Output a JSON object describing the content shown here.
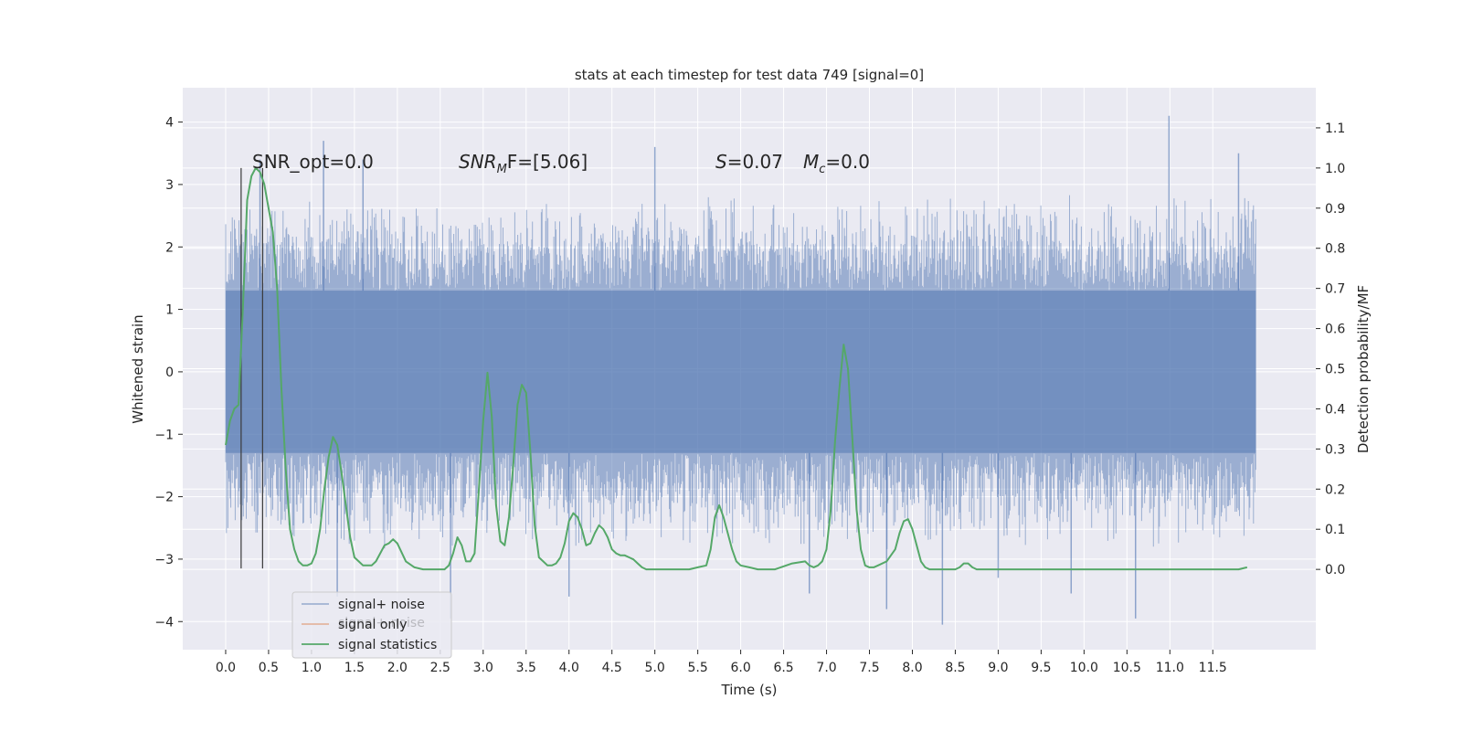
{
  "chart_data": {
    "type": "line",
    "title": "stats at each timestep for test data 749 [signal=0]",
    "xlabel": "Time (s)",
    "ylabel_left": "Whitened strain",
    "ylabel_right": "Detection probability/MF",
    "xlim": [
      -0.5,
      12.7
    ],
    "ylim_left": [
      -4.45,
      4.55
    ],
    "ylim_right": [
      -0.2,
      1.2
    ],
    "x_ticks": [
      "0.0",
      "0.5",
      "1.0",
      "1.5",
      "2.0",
      "2.5",
      "3.0",
      "3.5",
      "4.0",
      "4.5",
      "5.0",
      "5.5",
      "6.0",
      "6.5",
      "7.0",
      "7.5",
      "8.0",
      "8.5",
      "9.0",
      "9.5",
      "10.0",
      "10.5",
      "11.0",
      "11.5"
    ],
    "y_ticks_left": [
      "4",
      "3",
      "2",
      "1",
      "0",
      "−1",
      "−2",
      "−3",
      "−4"
    ],
    "y_ticks_right": [
      "1.1",
      "1.0",
      "0.9",
      "0.8",
      "0.7",
      "0.6",
      "0.5",
      "0.4",
      "0.3",
      "0.2",
      "0.1",
      "0.0"
    ],
    "grid": true,
    "legend_location": "lower-left",
    "colors": {
      "signal_noise": "#4c72b0",
      "signal_only": "#dd8452",
      "signal_statistics": "#55a868",
      "background": "#eaeaf2",
      "marker": "#3a3a3a"
    },
    "annotations": {
      "snr_opt": "SNR_opt=0.0",
      "snr_mf_base": "SNR",
      "snr_mf_sub": "M",
      "snr_mf_rest": "F=[5.06]",
      "s_var": "S",
      "s_val": "=0.07",
      "mc_var": "M",
      "mc_sub": "c",
      "mc_val": "=0.0"
    },
    "marker_lines_x": [
      0.18,
      0.43
    ],
    "noise_series": {
      "name": "signal+ noise",
      "t_start": 0.0,
      "t_end": 12.0,
      "core_band": [
        -1.3,
        1.3
      ],
      "typical_extremes": [
        -2.5,
        2.5
      ],
      "spikes": [
        {
          "t": 10.99,
          "y": 4.1
        },
        {
          "t": 1.14,
          "y": 3.7
        },
        {
          "t": 5.0,
          "y": 3.6
        },
        {
          "t": 11.8,
          "y": 3.5
        },
        {
          "t": 1.6,
          "y": 3.4
        },
        {
          "t": 0.4,
          "y": 3.4
        },
        {
          "t": 10.6,
          "y": -3.95
        },
        {
          "t": 2.62,
          "y": -3.95
        },
        {
          "t": 8.35,
          "y": -4.05
        },
        {
          "t": 4.0,
          "y": -3.6
        },
        {
          "t": 9.85,
          "y": -3.55
        },
        {
          "t": 7.7,
          "y": -3.8
        },
        {
          "t": 1.3,
          "y": -3.6
        },
        {
          "t": 6.8,
          "y": -3.55
        },
        {
          "t": 9.0,
          "y": -3.3
        }
      ]
    },
    "series": [
      {
        "name": "signal statistics",
        "x": [
          0.0,
          0.05,
          0.1,
          0.15,
          0.2,
          0.25,
          0.3,
          0.35,
          0.4,
          0.45,
          0.5,
          0.55,
          0.6,
          0.65,
          0.7,
          0.75,
          0.8,
          0.85,
          0.9,
          0.95,
          1.0,
          1.05,
          1.1,
          1.15,
          1.2,
          1.25,
          1.3,
          1.35,
          1.4,
          1.45,
          1.5,
          1.55,
          1.6,
          1.65,
          1.7,
          1.75,
          1.8,
          1.85,
          1.9,
          1.95,
          2.0,
          2.1,
          2.2,
          2.3,
          2.35,
          2.4,
          2.45,
          2.5,
          2.55,
          2.6,
          2.65,
          2.7,
          2.75,
          2.8,
          2.85,
          2.9,
          2.95,
          3.0,
          3.05,
          3.1,
          3.15,
          3.2,
          3.25,
          3.3,
          3.35,
          3.4,
          3.45,
          3.5,
          3.55,
          3.6,
          3.65,
          3.7,
          3.75,
          3.8,
          3.85,
          3.9,
          3.95,
          4.0,
          4.05,
          4.1,
          4.15,
          4.2,
          4.25,
          4.3,
          4.35,
          4.4,
          4.45,
          4.5,
          4.55,
          4.6,
          4.65,
          4.7,
          4.75,
          4.8,
          4.85,
          4.9,
          5.0,
          5.2,
          5.4,
          5.5,
          5.6,
          5.65,
          5.7,
          5.75,
          5.8,
          5.85,
          5.9,
          5.95,
          6.0,
          6.1,
          6.2,
          6.4,
          6.6,
          6.75,
          6.8,
          6.85,
          6.9,
          6.95,
          7.0,
          7.05,
          7.1,
          7.15,
          7.2,
          7.25,
          7.3,
          7.35,
          7.4,
          7.45,
          7.5,
          7.55,
          7.6,
          7.7,
          7.8,
          7.85,
          7.9,
          7.95,
          8.0,
          8.05,
          8.1,
          8.15,
          8.2,
          8.3,
          8.4,
          8.5,
          8.55,
          8.6,
          8.65,
          8.7,
          8.75,
          8.8,
          8.9,
          9.0,
          9.5,
          10.0,
          10.5,
          11.0,
          11.5,
          11.7,
          11.8,
          11.9
        ],
        "y": [
          0.31,
          0.37,
          0.4,
          0.41,
          0.65,
          0.92,
          0.98,
          1.0,
          0.99,
          0.96,
          0.9,
          0.84,
          0.7,
          0.45,
          0.25,
          0.1,
          0.05,
          0.02,
          0.01,
          0.01,
          0.015,
          0.04,
          0.1,
          0.2,
          0.28,
          0.33,
          0.31,
          0.24,
          0.16,
          0.08,
          0.03,
          0.02,
          0.01,
          0.01,
          0.01,
          0.02,
          0.04,
          0.06,
          0.065,
          0.075,
          0.065,
          0.02,
          0.005,
          0.0,
          0.0,
          0.0,
          0.0,
          0.0,
          0.0,
          0.01,
          0.04,
          0.08,
          0.06,
          0.02,
          0.02,
          0.04,
          0.2,
          0.37,
          0.49,
          0.38,
          0.16,
          0.07,
          0.06,
          0.13,
          0.26,
          0.41,
          0.46,
          0.44,
          0.29,
          0.11,
          0.03,
          0.02,
          0.01,
          0.01,
          0.015,
          0.03,
          0.065,
          0.12,
          0.14,
          0.13,
          0.1,
          0.06,
          0.065,
          0.09,
          0.11,
          0.1,
          0.08,
          0.05,
          0.04,
          0.035,
          0.035,
          0.03,
          0.025,
          0.015,
          0.005,
          0.0,
          0.0,
          0.0,
          0.0,
          0.005,
          0.01,
          0.05,
          0.13,
          0.16,
          0.13,
          0.09,
          0.05,
          0.02,
          0.01,
          0.005,
          0.0,
          0.0,
          0.015,
          0.02,
          0.01,
          0.005,
          0.01,
          0.02,
          0.05,
          0.15,
          0.32,
          0.45,
          0.56,
          0.5,
          0.33,
          0.15,
          0.05,
          0.01,
          0.005,
          0.005,
          0.01,
          0.02,
          0.05,
          0.09,
          0.12,
          0.125,
          0.1,
          0.06,
          0.02,
          0.005,
          0.0,
          0.0,
          0.0,
          0.0,
          0.005,
          0.015,
          0.015,
          0.005,
          0.0,
          0.0,
          0.0,
          0.0,
          0.0,
          0.0,
          0.0,
          0.0,
          0.0,
          0.0,
          0.0,
          0.005
        ]
      }
    ],
    "legend": [
      "signal+ noise",
      "signal only",
      "signal statistics"
    ],
    "legend_underlay": "signal+ noise"
  }
}
